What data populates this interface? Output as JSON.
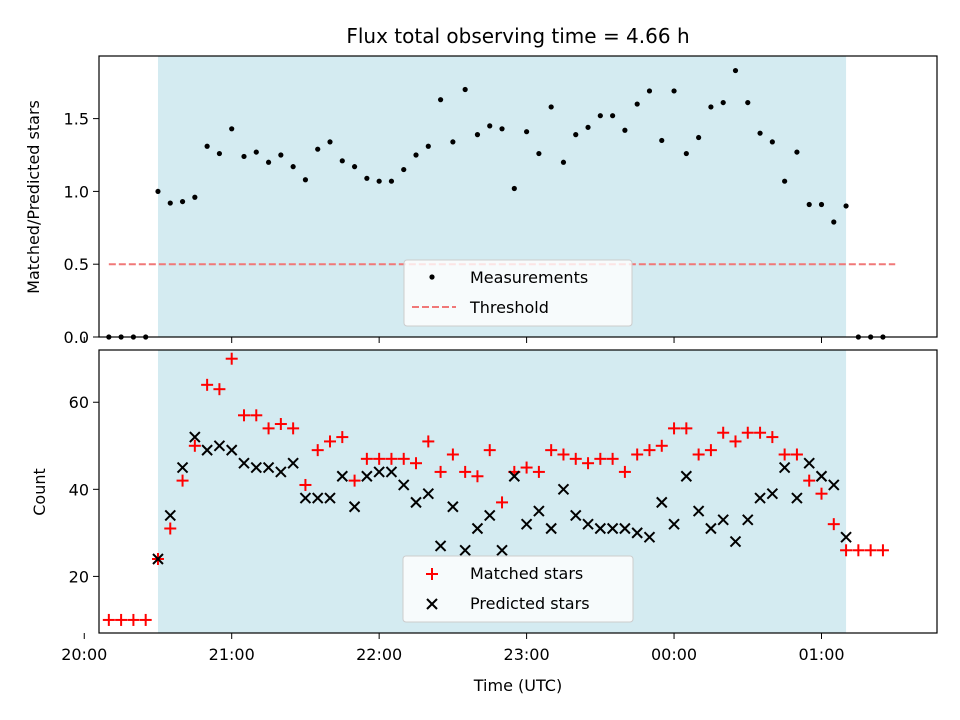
{
  "chart_data": [
    {
      "type": "scatter",
      "title": "Flux total observing time = 4.66 h",
      "xlabel": "",
      "ylabel": "Matched/Predicted stars",
      "xlim": [
        "20:06",
        "01:47"
      ],
      "ylim": [
        0,
        1.93
      ],
      "yticks": [
        "0.0",
        "0.5",
        "1.0",
        "1.5"
      ],
      "shaded_interval": [
        "20:30",
        "01:10"
      ],
      "shade_color": "#d4ebf1",
      "legend_position": "lower center",
      "series": [
        {
          "name": "Measurements",
          "marker": "dot",
          "color": "#000000",
          "x": [
            "20:10",
            "20:15",
            "20:20",
            "20:25",
            "20:30",
            "20:35",
            "20:40",
            "20:45",
            "20:50",
            "20:55",
            "21:00",
            "21:05",
            "21:10",
            "21:15",
            "21:20",
            "21:25",
            "21:30",
            "21:35",
            "21:40",
            "21:45",
            "21:50",
            "21:55",
            "22:00",
            "22:05",
            "22:10",
            "22:15",
            "22:20",
            "22:25",
            "22:30",
            "22:35",
            "22:40",
            "22:45",
            "22:50",
            "22:55",
            "23:00",
            "23:05",
            "23:10",
            "23:15",
            "23:20",
            "23:25",
            "23:30",
            "23:35",
            "23:40",
            "23:45",
            "23:50",
            "23:55",
            "00:00",
            "00:05",
            "00:10",
            "00:15",
            "00:20",
            "00:25",
            "00:30",
            "00:35",
            "00:40",
            "00:45",
            "00:50",
            "00:55",
            "01:00",
            "01:05",
            "01:10",
            "01:15",
            "01:20",
            "01:25"
          ],
          "y": [
            0,
            0,
            0,
            0,
            1.0,
            0.92,
            0.93,
            0.96,
            1.31,
            1.26,
            1.43,
            1.24,
            1.27,
            1.2,
            1.25,
            1.17,
            1.08,
            1.29,
            1.34,
            1.21,
            1.17,
            1.09,
            1.07,
            1.07,
            1.15,
            1.25,
            1.31,
            1.63,
            1.34,
            1.7,
            1.39,
            1.45,
            1.43,
            1.02,
            1.41,
            1.26,
            1.58,
            1.2,
            1.39,
            1.44,
            1.52,
            1.52,
            1.42,
            1.6,
            1.69,
            1.35,
            1.69,
            1.26,
            1.37,
            1.58,
            1.61,
            1.83,
            1.61,
            1.4,
            1.34,
            1.07,
            1.27,
            0.91,
            0.91,
            0.79,
            0.9,
            0,
            0,
            0
          ]
        },
        {
          "name": "Threshold",
          "style": "dashed",
          "color": "#f07878",
          "x": [
            "20:10",
            "01:30"
          ],
          "y": [
            0.5,
            0.5
          ]
        }
      ]
    },
    {
      "type": "scatter",
      "title": "",
      "xlabel": "Time (UTC)",
      "ylabel": "Count",
      "xlim": [
        "20:06",
        "01:47"
      ],
      "ylim": [
        7,
        72
      ],
      "yticks": [
        "20",
        "40",
        "60"
      ],
      "xticks": [
        "20:00",
        "21:00",
        "22:00",
        "23:00",
        "00:00",
        "01:00"
      ],
      "shaded_interval": [
        "20:30",
        "01:10"
      ],
      "shade_color": "#d4ebf1",
      "legend_position": "lower center",
      "series": [
        {
          "name": "Matched stars",
          "marker": "plus",
          "color": "#ff0000",
          "x": [
            "20:10",
            "20:15",
            "20:20",
            "20:25",
            "20:30",
            "20:35",
            "20:40",
            "20:45",
            "20:50",
            "20:55",
            "21:00",
            "21:05",
            "21:10",
            "21:15",
            "21:20",
            "21:25",
            "21:30",
            "21:35",
            "21:40",
            "21:45",
            "21:50",
            "21:55",
            "22:00",
            "22:05",
            "22:10",
            "22:15",
            "22:20",
            "22:25",
            "22:30",
            "22:35",
            "22:40",
            "22:45",
            "22:50",
            "22:55",
            "23:00",
            "23:05",
            "23:10",
            "23:15",
            "23:20",
            "23:25",
            "23:30",
            "23:35",
            "23:40",
            "23:45",
            "23:50",
            "23:55",
            "00:00",
            "00:05",
            "00:10",
            "00:15",
            "00:20",
            "00:25",
            "00:30",
            "00:35",
            "00:40",
            "00:45",
            "00:50",
            "00:55",
            "01:00",
            "01:05",
            "01:10",
            "01:15",
            "01:20",
            "01:25"
          ],
          "y": [
            10,
            10,
            10,
            10,
            24,
            31,
            42,
            50,
            64,
            63,
            70,
            57,
            57,
            54,
            55,
            54,
            41,
            49,
            51,
            52,
            42,
            47,
            47,
            47,
            47,
            46,
            51,
            44,
            48,
            44,
            43,
            49,
            37,
            44,
            45,
            44,
            49,
            48,
            47,
            46,
            47,
            47,
            44,
            48,
            49,
            50,
            54,
            54,
            48,
            49,
            53,
            51,
            53,
            53,
            52,
            48,
            48,
            42,
            39,
            32,
            26,
            26,
            26,
            26
          ]
        },
        {
          "name": "Predicted stars",
          "marker": "x",
          "color": "#000000",
          "x": [
            "20:30",
            "20:35",
            "20:40",
            "20:45",
            "20:50",
            "20:55",
            "21:00",
            "21:05",
            "21:10",
            "21:15",
            "21:20",
            "21:25",
            "21:30",
            "21:35",
            "21:40",
            "21:45",
            "21:50",
            "21:55",
            "22:00",
            "22:05",
            "22:10",
            "22:15",
            "22:20",
            "22:25",
            "22:30",
            "22:35",
            "22:40",
            "22:45",
            "22:50",
            "22:55",
            "23:00",
            "23:05",
            "23:10",
            "23:15",
            "23:20",
            "23:25",
            "23:30",
            "23:35",
            "23:40",
            "23:45",
            "23:50",
            "23:55",
            "00:00",
            "00:05",
            "00:10",
            "00:15",
            "00:20",
            "00:25",
            "00:30",
            "00:35",
            "00:40",
            "00:45",
            "00:50",
            "00:55",
            "01:00",
            "01:05",
            "01:10"
          ],
          "y": [
            24,
            34,
            45,
            52,
            49,
            50,
            49,
            46,
            45,
            45,
            44,
            46,
            38,
            38,
            38,
            43,
            36,
            43,
            44,
            44,
            41,
            37,
            39,
            27,
            36,
            26,
            31,
            34,
            26,
            43,
            32,
            35,
            31,
            40,
            34,
            32,
            31,
            31,
            31,
            30,
            29,
            37,
            32,
            43,
            35,
            31,
            33,
            28,
            33,
            38,
            39,
            45,
            38,
            46,
            43,
            41,
            29
          ]
        }
      ]
    }
  ]
}
